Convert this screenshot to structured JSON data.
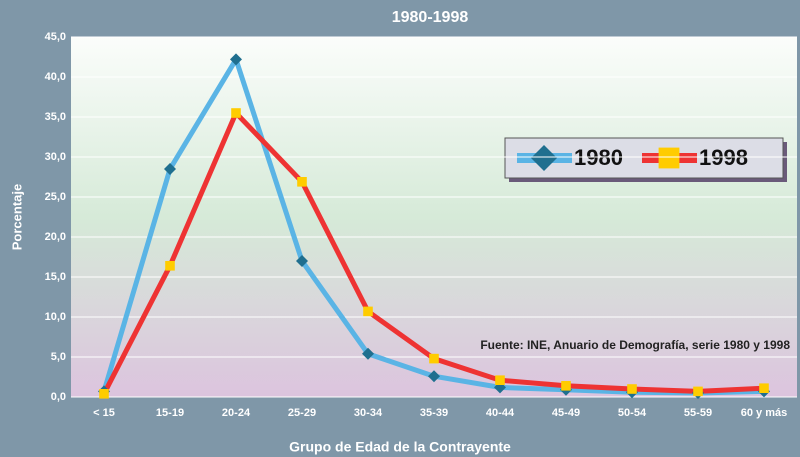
{
  "chart_data": {
    "type": "line",
    "title": "1980-1998",
    "x_label": "Grupo de Edad de la Contrayente",
    "y_label": "Porcentaje",
    "annotation": "Fuente: INE, Anuario de Demografía, serie 1980 y 1998",
    "categories": [
      "< 15",
      "15-19",
      "20-24",
      "25-29",
      "30-34",
      "35-39",
      "40-44",
      "45-49",
      "50-54",
      "55-59",
      "60 y más"
    ],
    "series": [
      {
        "name": "1980",
        "color": "#5ab4e5",
        "marker_color": "#1f6f8f",
        "marker": "diamond",
        "values": [
          0.7,
          28.5,
          42.2,
          17.0,
          5.4,
          2.6,
          1.2,
          0.9,
          0.6,
          0.5,
          0.7
        ]
      },
      {
        "name": "1998",
        "color": "#ee3333",
        "marker_color": "#ffcc00",
        "marker": "square",
        "values": [
          0.4,
          16.4,
          35.5,
          26.9,
          10.7,
          4.8,
          2.1,
          1.4,
          1.0,
          0.7,
          1.1
        ]
      }
    ],
    "ylim": [
      0,
      45
    ],
    "yticks": [
      {
        "value": 0,
        "label": "0,0"
      },
      {
        "value": 5,
        "label": "5,0"
      },
      {
        "value": 10,
        "label": "10,0"
      },
      {
        "value": 15,
        "label": "15,0"
      },
      {
        "value": 20,
        "label": "20,0"
      },
      {
        "value": 25,
        "label": "25,0"
      },
      {
        "value": 30,
        "label": "30,0"
      },
      {
        "value": 35,
        "label": "35,0"
      },
      {
        "value": 40,
        "label": "40,0"
      },
      {
        "value": 45,
        "label": "45,0"
      }
    ],
    "grid": true,
    "legend": "upper right"
  }
}
